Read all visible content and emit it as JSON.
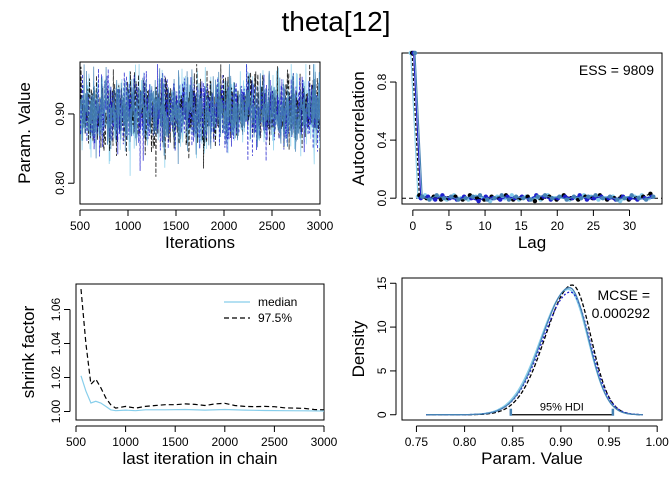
{
  "title": "theta[12]",
  "colors": {
    "chain1": "#87ceeb",
    "chain2": "#000000",
    "chain3": "#1e1ecc",
    "chain4": "#4682b4"
  },
  "chart_data": [
    {
      "id": "trace",
      "type": "line",
      "title": "",
      "xlabel": "Iterations",
      "ylabel": "Param. Value",
      "xlim": [
        500,
        3000
      ],
      "ylim": [
        0.77,
        0.975
      ],
      "xticks": [
        500,
        1000,
        1500,
        2000,
        2500,
        3000
      ],
      "yticks": [
        0.8,
        0.9
      ],
      "ytick_labels": [
        "0.80",
        "0.90"
      ],
      "center": 0.905,
      "sd": 0.027,
      "n_iter": 2500,
      "series": [
        {
          "color": "#87ceeb"
        },
        {
          "color": "#000000"
        },
        {
          "color": "#1e1ecc"
        },
        {
          "color": "#4682b4"
        }
      ]
    },
    {
      "id": "autocorr",
      "type": "line",
      "xlabel": "Lag",
      "ylabel": "Autocorrelation",
      "xlim": [
        -1.5,
        34.5
      ],
      "ylim": [
        -0.04,
        1.0
      ],
      "xticks": [
        0,
        5,
        10,
        15,
        20,
        25,
        30
      ],
      "yticks": [
        0.0,
        0.4,
        0.8
      ],
      "ytick_labels": [
        "0.0",
        "0.4",
        "0.8"
      ],
      "annotation": "ESS = 9809",
      "lags": [
        0,
        1,
        2,
        3,
        4,
        5,
        6,
        7,
        8,
        9,
        10,
        11,
        12,
        13,
        14,
        15,
        16,
        17,
        18,
        19,
        20,
        21,
        22,
        23,
        24,
        25,
        26,
        27,
        28,
        29,
        30,
        31,
        32,
        33
      ],
      "series": [
        {
          "color": "#87ceeb",
          "values": [
            1.0,
            0.01,
            0.02,
            0.0,
            0.01,
            -0.01,
            0.02,
            0.0,
            -0.01,
            0.01,
            0.0,
            -0.02,
            0.01,
            0.0,
            0.02,
            -0.01,
            0.01,
            0.0,
            -0.01,
            0.02,
            0.0,
            0.01,
            -0.01,
            0.0,
            0.02,
            0.01,
            -0.01,
            0.0,
            0.01,
            -0.02,
            0.0,
            0.01,
            0.02,
            0.0
          ]
        },
        {
          "color": "#000000",
          "values": [
            1.0,
            0.02,
            0.0,
            0.01,
            -0.01,
            0.0,
            0.01,
            -0.01,
            0.02,
            0.0,
            -0.01,
            0.01,
            0.0,
            0.02,
            -0.01,
            0.0,
            0.01,
            -0.02,
            0.0,
            0.01,
            -0.01,
            0.02,
            0.0,
            -0.01,
            0.01,
            0.0,
            0.02,
            -0.01,
            0.0,
            0.01,
            -0.01,
            0.0,
            0.01,
            0.03
          ]
        },
        {
          "color": "#1e1ecc",
          "values": [
            1.0,
            0.0,
            0.01,
            -0.01,
            0.02,
            0.0,
            -0.01,
            0.01,
            0.0,
            -0.02,
            0.01,
            0.0,
            -0.01,
            0.01,
            0.0,
            0.01,
            -0.01,
            0.02,
            0.01,
            -0.01,
            0.0,
            0.01,
            0.0,
            0.02,
            -0.01,
            0.0,
            0.01,
            0.0,
            -0.01,
            0.01,
            0.0,
            -0.01,
            0.0,
            0.01
          ]
        },
        {
          "color": "#4682b4",
          "values": [
            1.0,
            0.01,
            -0.01,
            0.02,
            0.0,
            0.01,
            -0.01,
            0.0,
            0.01,
            0.02,
            -0.01,
            0.0,
            0.02,
            -0.01,
            0.01,
            0.0,
            -0.01,
            0.01,
            0.02,
            0.0,
            0.01,
            -0.01,
            0.01,
            0.0,
            0.01,
            0.02,
            0.0,
            0.01,
            -0.01,
            0.0,
            0.02,
            0.0,
            -0.01,
            0.01
          ]
        }
      ]
    },
    {
      "id": "shrink",
      "type": "line",
      "xlabel": "last iteration in chain",
      "ylabel": "shrink factor",
      "xlim": [
        500,
        3000
      ],
      "ylim": [
        0.995,
        1.075
      ],
      "xticks": [
        500,
        1000,
        1500,
        2000,
        2500,
        3000
      ],
      "yticks": [
        1.0,
        1.02,
        1.04,
        1.06
      ],
      "ytick_labels": [
        "1.00",
        "1.02",
        "1.04",
        "1.06"
      ],
      "legend": [
        "median",
        "97.5%"
      ],
      "legend_position": "top-right",
      "series": [
        {
          "name": "median",
          "color": "#87ceeb",
          "style": "solid",
          "x": [
            550,
            600,
            650,
            700,
            750,
            800,
            850,
            900,
            1000,
            1100,
            1200,
            1400,
            1600,
            1800,
            2000,
            2200,
            2400,
            2600,
            2800,
            3000
          ],
          "y": [
            1.021,
            1.012,
            1.005,
            1.006,
            1.005,
            1.003,
            1.001,
            1.0005,
            1.0008,
            1.0005,
            1.001,
            1.001,
            1.0012,
            1.0008,
            1.0012,
            1.0008,
            1.0006,
            1.0005,
            1.0004,
            1.0003
          ]
        },
        {
          "name": "97.5%",
          "color": "#000000",
          "style": "dashed",
          "x": [
            550,
            600,
            650,
            700,
            750,
            800,
            850,
            900,
            1000,
            1100,
            1200,
            1300,
            1400,
            1500,
            1600,
            1700,
            1800,
            1900,
            2000,
            2100,
            2200,
            2300,
            2400,
            2500,
            2600,
            2700,
            2800,
            2900,
            3000
          ],
          "y": [
            1.072,
            1.04,
            1.016,
            1.019,
            1.014,
            1.008,
            1.004,
            1.002,
            1.003,
            1.002,
            1.003,
            1.0035,
            1.004,
            1.004,
            1.0045,
            1.0042,
            1.0035,
            1.0045,
            1.0048,
            1.0035,
            1.003,
            1.0028,
            1.003,
            1.0028,
            1.0022,
            1.002,
            1.0018,
            1.0012,
            1.001
          ]
        }
      ]
    },
    {
      "id": "density",
      "type": "line",
      "xlabel": "Param. Value",
      "ylabel": "Density",
      "xlim": [
        0.735,
        1.005
      ],
      "ylim": [
        -0.6,
        15.6
      ],
      "xticks": [
        0.75,
        0.8,
        0.85,
        0.9,
        0.95,
        1.0
      ],
      "xtick_labels": [
        "0.75",
        "0.80",
        "0.85",
        "0.90",
        "0.95",
        "1.00"
      ],
      "yticks": [
        0,
        5,
        10,
        15
      ],
      "ytick_labels": [
        "0",
        "5",
        "10",
        "15"
      ],
      "annotation_lines": [
        "MCSE =",
        "0.000292"
      ],
      "hdi_label": "95% HDI",
      "hdi": [
        0.848,
        0.954
      ],
      "density_x_range": [
        0.76,
        0.985
      ],
      "series": [
        {
          "color": "#87ceeb",
          "mode": 0.908,
          "sd_left": 0.029,
          "sd_right": 0.02,
          "peak": 14.3
        },
        {
          "color": "#000000",
          "mode": 0.912,
          "sd_left": 0.028,
          "sd_right": 0.019,
          "peak": 14.8
        },
        {
          "color": "#1e1ecc",
          "mode": 0.91,
          "sd_left": 0.029,
          "sd_right": 0.02,
          "peak": 14.0
        },
        {
          "color": "#4682b4",
          "mode": 0.909,
          "sd_left": 0.0285,
          "sd_right": 0.0195,
          "peak": 14.5
        }
      ]
    }
  ]
}
